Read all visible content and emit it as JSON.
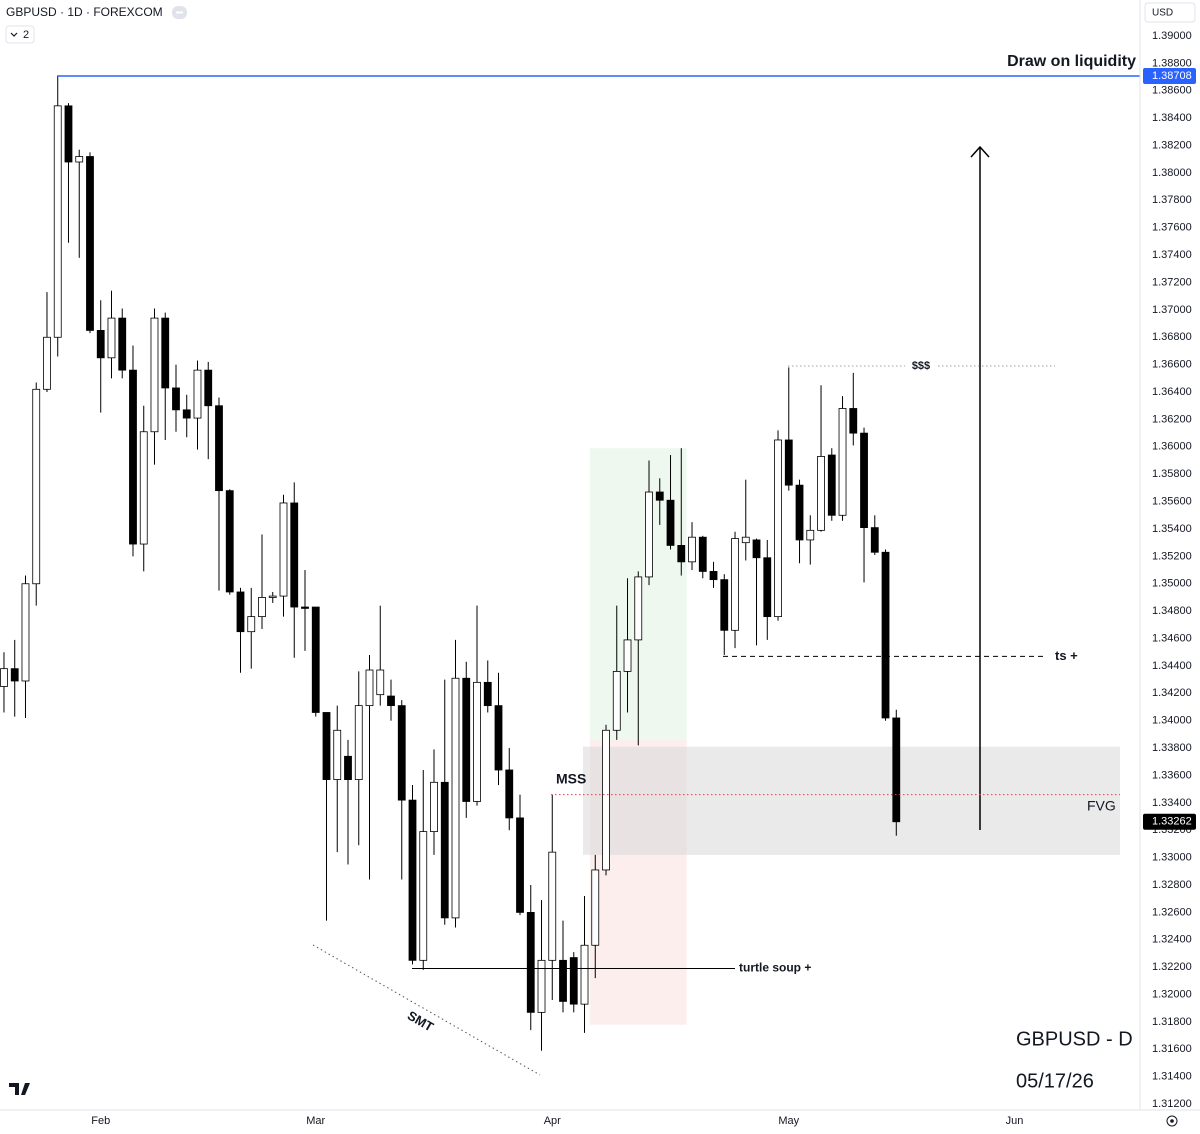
{
  "chart_data": {
    "type": "candlestick",
    "title": "GBPUSD · 1D · FOREXCOM",
    "indicator_count": "2",
    "currency": "USD",
    "up_color": "#ffffff",
    "down_color": "#000000",
    "open": [
      1.3425,
      1.3438,
      1.3429,
      1.35,
      1.3642,
      1.368,
      1.3849,
      1.3808,
      1.3812,
      1.3685,
      1.3665,
      1.3694,
      1.3656,
      1.3529,
      1.3611,
      1.3694,
      1.3643,
      1.3627,
      1.3621,
      1.3656,
      1.363,
      1.3568,
      1.3494,
      1.3465,
      1.3476,
      1.349,
      1.3491,
      1.3559,
      1.3483,
      1.3483,
      1.3406,
      1.3357,
      1.3374,
      1.3357,
      1.3411,
      1.3419,
      1.3418,
      1.3411,
      1.3342,
      1.3225,
      1.3319,
      1.3355,
      1.3256,
      1.3431,
      1.3341,
      1.3428,
      1.3411,
      1.3364,
      1.3329,
      1.326,
      1.3187,
      1.3225,
      1.3225,
      1.3227,
      1.3193,
      1.3236,
      1.3291,
      1.3393,
      1.3436,
      1.3459,
      1.3505,
      1.3567,
      1.3561,
      1.3528,
      1.3516,
      1.3534,
      1.3509,
      1.3503,
      1.3466,
      1.353,
      1.3532,
      1.3519,
      1.3476,
      1.3605,
      1.3572,
      1.3532,
      1.3539,
      1.3594,
      1.355,
      1.3628,
      1.361,
      1.3541,
      1.3523,
      1.3402
    ],
    "high": [
      1.345,
      1.3459,
      1.3506,
      1.3647,
      1.3713,
      1.3871,
      1.3851,
      1.3817,
      1.3815,
      1.3707,
      1.3714,
      1.3701,
      1.3674,
      1.363,
      1.3701,
      1.3698,
      1.366,
      1.3638,
      1.3663,
      1.3662,
      1.3636,
      1.3569,
      1.3497,
      1.3497,
      1.3536,
      1.3494,
      1.3565,
      1.3574,
      1.351,
      1.3483,
      1.3406,
      1.3411,
      1.3386,
      1.3436,
      1.3448,
      1.3484,
      1.343,
      1.3415,
      1.3353,
      1.3364,
      1.3379,
      1.343,
      1.3459,
      1.3443,
      1.3484,
      1.3444,
      1.3435,
      1.338,
      1.3346,
      1.328,
      1.3269,
      1.3346,
      1.3254,
      1.3231,
      1.3272,
      1.3302,
      1.3397,
      1.3484,
      1.3504,
      1.3509,
      1.359,
      1.3577,
      1.3594,
      1.3599,
      1.3545,
      1.3535,
      1.3516,
      1.3507,
      1.3538,
      1.3576,
      1.3533,
      1.3532,
      1.3612,
      1.3658,
      1.3576,
      1.355,
      1.3645,
      1.3599,
      1.3637,
      1.3654,
      1.3614,
      1.355,
      1.3525,
      1.3408
    ],
    "low": [
      1.3406,
      1.3403,
      1.3402,
      1.3484,
      1.364,
      1.3666,
      1.3749,
      1.3738,
      1.3683,
      1.3625,
      1.365,
      1.365,
      1.352,
      1.3509,
      1.3587,
      1.3605,
      1.3611,
      1.3607,
      1.3598,
      1.3591,
      1.3495,
      1.3492,
      1.3435,
      1.3438,
      1.3467,
      1.3486,
      1.3476,
      1.3446,
      1.3451,
      1.3403,
      1.3254,
      1.3304,
      1.3295,
      1.3309,
      1.3284,
      1.3411,
      1.34,
      1.3284,
      1.3222,
      1.3218,
      1.3302,
      1.3251,
      1.3249,
      1.3329,
      1.3338,
      1.3406,
      1.3353,
      1.332,
      1.3258,
      1.3174,
      1.3159,
      1.3196,
      1.3187,
      1.3187,
      1.3172,
      1.3212,
      1.3287,
      1.3386,
      1.3406,
      1.3382,
      1.3499,
      1.3543,
      1.3525,
      1.3506,
      1.351,
      1.3504,
      1.3497,
      1.3448,
      1.3453,
      1.3517,
      1.3455,
      1.3459,
      1.3473,
      1.3568,
      1.3515,
      1.3514,
      1.3538,
      1.3546,
      1.3546,
      1.3601,
      1.3501,
      1.3521,
      1.34,
      1.3316
    ],
    "close": [
      1.3438,
      1.3429,
      1.35,
      1.3642,
      1.368,
      1.3849,
      1.3808,
      1.3812,
      1.3685,
      1.3665,
      1.3694,
      1.3656,
      1.3529,
      1.3611,
      1.3694,
      1.3643,
      1.3627,
      1.3621,
      1.3656,
      1.363,
      1.3568,
      1.3494,
      1.3465,
      1.3476,
      1.349,
      1.3491,
      1.3559,
      1.3483,
      1.3482,
      1.3406,
      1.3357,
      1.3393,
      1.3357,
      1.3411,
      1.3437,
      1.3437,
      1.3411,
      1.3342,
      1.3225,
      1.3319,
      1.3355,
      1.3256,
      1.3431,
      1.3341,
      1.3428,
      1.3411,
      1.3364,
      1.3329,
      1.326,
      1.3187,
      1.3225,
      1.3304,
      1.3195,
      1.3193,
      1.3236,
      1.3291,
      1.3393,
      1.3436,
      1.3459,
      1.3505,
      1.3567,
      1.3561,
      1.3528,
      1.3516,
      1.3534,
      1.3509,
      1.3503,
      1.3466,
      1.3533,
      1.3534,
      1.3519,
      1.3476,
      1.3605,
      1.3572,
      1.3532,
      1.3539,
      1.3593,
      1.355,
      1.3628,
      1.361,
      1.3541,
      1.3523,
      1.3402,
      1.33262
    ],
    "xlim": [
      -0.37,
      105.67
    ],
    "xticks": [
      {
        "value": 9,
        "label": "Feb"
      },
      {
        "value": 29,
        "label": "Mar"
      },
      {
        "value": 51,
        "label": "Apr"
      },
      {
        "value": 73,
        "label": "May"
      },
      {
        "value": 94,
        "label": "Jun"
      }
    ],
    "ylim": [
      1.31157,
      1.39263
    ],
    "yticks": [
      {
        "value": 1.312,
        "label": "1.31200"
      },
      {
        "value": 1.314,
        "label": "1.31400"
      },
      {
        "value": 1.316,
        "label": "1.31600"
      },
      {
        "value": 1.318,
        "label": "1.31800"
      },
      {
        "value": 1.32,
        "label": "1.32000"
      },
      {
        "value": 1.322,
        "label": "1.32200"
      },
      {
        "value": 1.324,
        "label": "1.32400"
      },
      {
        "value": 1.326,
        "label": "1.32600"
      },
      {
        "value": 1.328,
        "label": "1.32800"
      },
      {
        "value": 1.33,
        "label": "1.33000"
      },
      {
        "value": 1.332,
        "label": "1.33200"
      },
      {
        "value": 1.334,
        "label": "1.33400"
      },
      {
        "value": 1.336,
        "label": "1.33600"
      },
      {
        "value": 1.338,
        "label": "1.33800"
      },
      {
        "value": 1.34,
        "label": "1.34000"
      },
      {
        "value": 1.342,
        "label": "1.34200"
      },
      {
        "value": 1.344,
        "label": "1.34400"
      },
      {
        "value": 1.346,
        "label": "1.34600"
      },
      {
        "value": 1.348,
        "label": "1.34800"
      },
      {
        "value": 1.35,
        "label": "1.35000"
      },
      {
        "value": 1.352,
        "label": "1.35200"
      },
      {
        "value": 1.354,
        "label": "1.35400"
      },
      {
        "value": 1.356,
        "label": "1.35600"
      },
      {
        "value": 1.358,
        "label": "1.35800"
      },
      {
        "value": 1.36,
        "label": "1.36000"
      },
      {
        "value": 1.362,
        "label": "1.36200"
      },
      {
        "value": 1.364,
        "label": "1.36400"
      },
      {
        "value": 1.366,
        "label": "1.36600"
      },
      {
        "value": 1.368,
        "label": "1.36800"
      },
      {
        "value": 1.37,
        "label": "1.37000"
      },
      {
        "value": 1.372,
        "label": "1.37200"
      },
      {
        "value": 1.374,
        "label": "1.37400"
      },
      {
        "value": 1.376,
        "label": "1.37600"
      },
      {
        "value": 1.378,
        "label": "1.37800"
      },
      {
        "value": 1.38,
        "label": "1.38000"
      },
      {
        "value": 1.382,
        "label": "1.38200"
      },
      {
        "value": 1.384,
        "label": "1.38400"
      },
      {
        "value": 1.386,
        "label": "1.38600"
      },
      {
        "value": 1.388,
        "label": "1.38800"
      },
      {
        "value": 1.39,
        "label": "1.39000"
      }
    ],
    "annotations": [
      {
        "text": "Draw on liquidity",
        "level": 1.38708,
        "color": "#2962ff",
        "style": "solid"
      },
      {
        "text": "$$$",
        "level": 1.3659,
        "color": "#9e9e9e",
        "style": "dotted"
      },
      {
        "text": "ts +",
        "level": 1.3447,
        "color": "#000000",
        "style": "dashed"
      },
      {
        "text": "MSS",
        "level": 1.3346,
        "color": "#f23645",
        "style": "dotted"
      },
      {
        "text": "turtle soup +",
        "level": 1.3219,
        "color": "#000000",
        "style": "solid"
      },
      {
        "text": "FVG",
        "zone": [
          1.3302,
          1.3381
        ],
        "color": "#d9d9d9"
      }
    ],
    "zones": [
      {
        "range": [
          1.3386,
          1.3599
        ],
        "color": "#e8f5e9"
      },
      {
        "range": [
          1.3178,
          1.3386
        ],
        "color": "#fce8e8"
      }
    ],
    "smt_label": "SMT",
    "watermark": [
      "GBPUSD - D",
      "05/17/26"
    ]
  }
}
